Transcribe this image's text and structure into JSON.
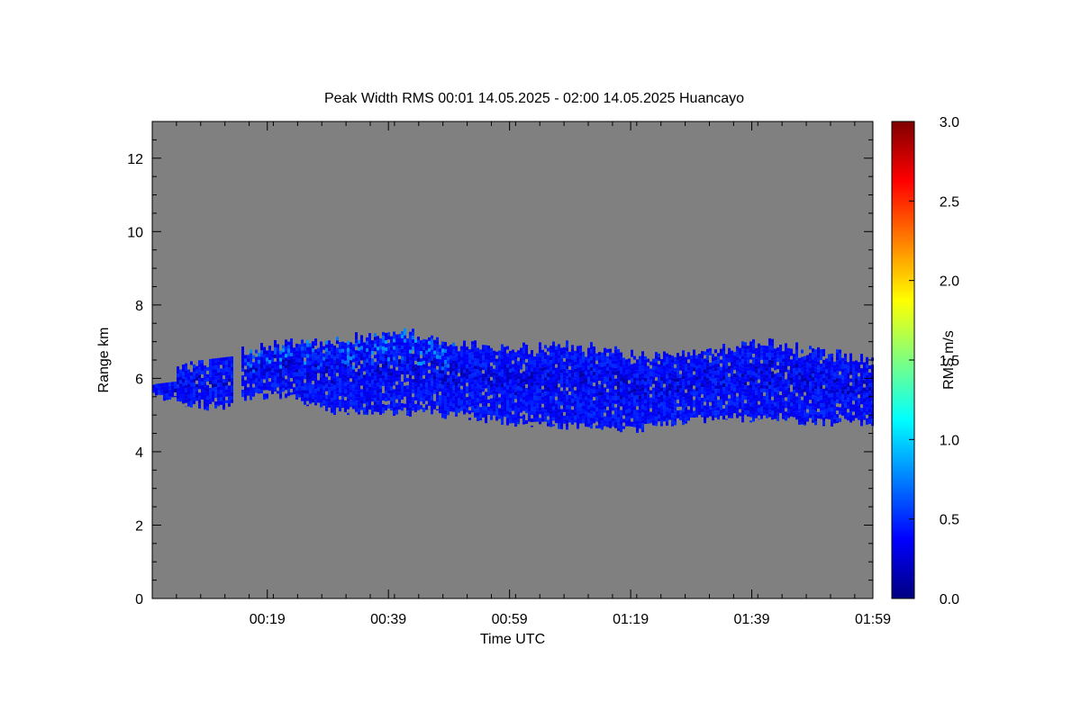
{
  "chart_data": {
    "type": "heatmap",
    "title": "Peak Width RMS   00:01 14.05.2025 - 02:00 14.05.2025 Huancayo",
    "xlabel": "Time UTC",
    "ylabel": "Range km",
    "x_tick_labels": [
      "00:19",
      "00:39",
      "00:59",
      "01:19",
      "01:39",
      "01:59"
    ],
    "x_tick_minutes": [
      19,
      39,
      59,
      79,
      99,
      119
    ],
    "xlim_minutes": [
      0,
      119
    ],
    "y_ticks": [
      0,
      2,
      4,
      6,
      8,
      10,
      12
    ],
    "y_tick_labels": [
      "0",
      "2",
      "4",
      "6",
      "8",
      "10",
      "12"
    ],
    "ylim": [
      0,
      13
    ],
    "background_color": "#808080",
    "colorbar": {
      "label": "RMS m/s",
      "range": [
        0.0,
        3.0
      ],
      "tick_values": [
        0.0,
        0.5,
        1.0,
        1.5,
        2.0,
        2.5,
        3.0
      ],
      "tick_labels": [
        "0.0",
        "0.5",
        "1.0",
        "1.5",
        "2.0",
        "2.5",
        "3.0"
      ],
      "colors": [
        "#00007f",
        "#0000ff",
        "#007fff",
        "#00ffff",
        "#7fff7f",
        "#ffff00",
        "#ff7f00",
        "#ff0000",
        "#7f0000"
      ]
    },
    "echo_layer": {
      "dominant_rms": 0.4,
      "description_values_minutes": [
        0,
        10,
        20,
        30,
        40,
        50,
        60,
        70,
        80,
        90,
        100,
        110,
        119
      ],
      "top_km": [
        6.0,
        6.6,
        6.9,
        7.0,
        7.3,
        6.9,
        6.8,
        6.9,
        6.6,
        6.7,
        7.0,
        6.7,
        6.5
      ],
      "bottom_km": [
        5.5,
        5.2,
        5.6,
        5.1,
        5.1,
        5.0,
        4.8,
        4.7,
        4.6,
        4.9,
        4.9,
        4.8,
        4.8
      ]
    }
  }
}
